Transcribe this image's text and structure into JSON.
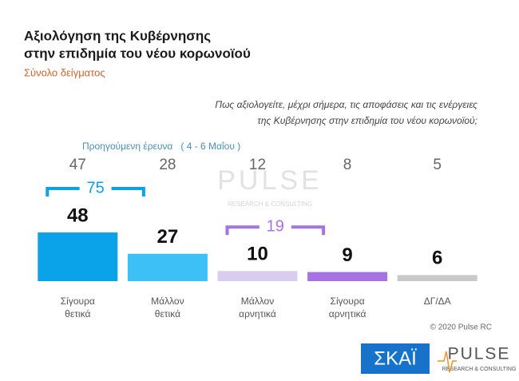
{
  "chart_data": {
    "type": "bar",
    "title": [
      "Αξιολόγηση της Κυβέρνησης",
      "στην επιδημία του νέου κορωνοϊού"
    ],
    "subtitle": "Σύνολο δείγματος",
    "question": [
      "Πως αξιολογείτε, μέχρι σήμερα, τις αποφάσεις και τις ενέργειες",
      "της Κυβέρνησης στην επιδημία του νέου κορωνοϊού;"
    ],
    "categories": [
      "Σίγουρα θετικά",
      "Μάλλον θετικά",
      "Μάλλον αρνητικά",
      "Σίγουρα αρνητικά",
      "ΔΓ/ΔΑ"
    ],
    "values": [
      48,
      27,
      10,
      9,
      6
    ],
    "colors": [
      "#0aa2e8",
      "#3cc0f6",
      "#d9ccef",
      "#a673e0",
      "#c9c9c9"
    ],
    "previous": {
      "name": "Προηγούμενη έρευνα   ( 4 - 6 Μαΐου )",
      "values": [
        47,
        28,
        12,
        8,
        5
      ]
    },
    "groups": [
      {
        "value": 75,
        "color": "#0aa2e8"
      },
      {
        "value": 19,
        "color": "#a673e0"
      }
    ],
    "watermark": "PULSE",
    "watermark_sub": "RESEARCH & CONSULTING",
    "copyright": "© 2020 Pulse RC",
    "logos": {
      "skai": "ΣΚΑΪ",
      "pulse": "PULSE",
      "pulse_sub": "RESEARCH & CONSULTING"
    }
  }
}
